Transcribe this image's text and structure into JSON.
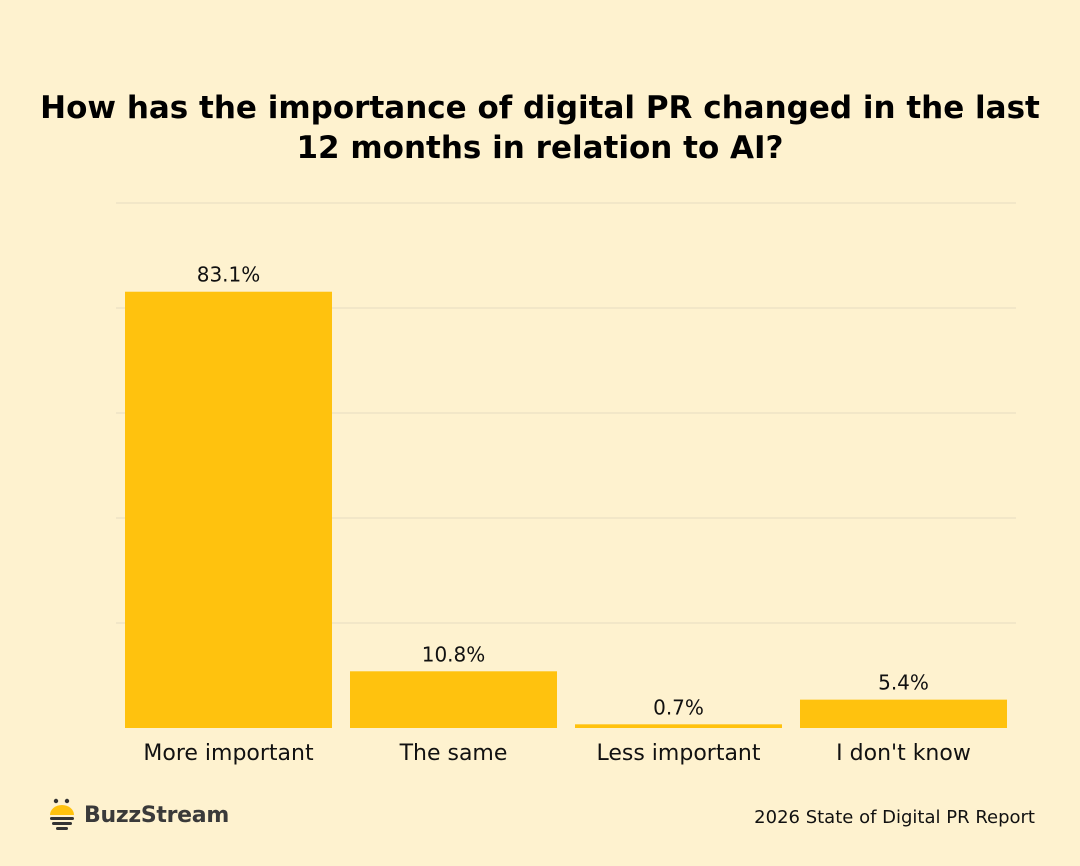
{
  "colors": {
    "background": "#fef2cf",
    "bar": "#ffc20e",
    "grid": "#e6dcc0",
    "text": "#111111"
  },
  "chart_data": {
    "type": "bar",
    "title": "How has the importance of digital PR changed in the last 12 months in relation to AI?",
    "categories": [
      "More important",
      "The same",
      "Less important",
      "I don't know"
    ],
    "values": [
      83.1,
      10.8,
      0.7,
      5.4
    ],
    "data_labels": [
      "83.1%",
      "10.8%",
      "0.7%",
      "5.4%"
    ],
    "xlabel": "",
    "ylabel": "",
    "ylim": [
      0,
      100
    ],
    "gridlines": [
      0,
      20,
      40,
      60,
      80,
      100
    ],
    "grid": true,
    "y_tick_labels_shown": false
  },
  "footer": {
    "brand": "BuzzStream",
    "source": "2026 State of Digital PR Report"
  }
}
